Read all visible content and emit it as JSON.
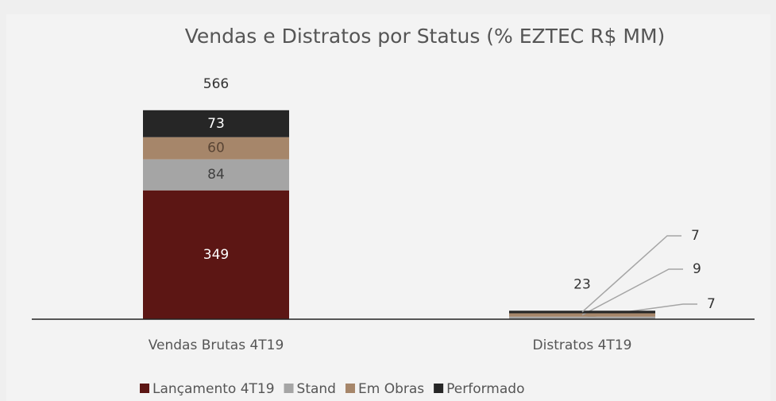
{
  "chart_data": {
    "type": "stacked_bar",
    "title": "Vendas e Distratos por Status (% EZTEC R$ MM)",
    "categories": [
      "Vendas Brutas 4T19",
      "Distratos 4T19"
    ],
    "series": [
      {
        "name": "Lançamento 4T19",
        "color": "#5c1614",
        "values": [
          349,
          null
        ]
      },
      {
        "name": "Stand",
        "color": "#a5a5a5",
        "values": [
          84,
          7
        ]
      },
      {
        "name": "Em Obras",
        "color": "#a6866a",
        "values": [
          60,
          9
        ]
      },
      {
        "name": "Performado",
        "color": "#262626",
        "values": [
          73,
          7
        ]
      }
    ],
    "totals": [
      566,
      23
    ],
    "ylim": [
      0,
      600
    ],
    "legend": "bottom"
  }
}
